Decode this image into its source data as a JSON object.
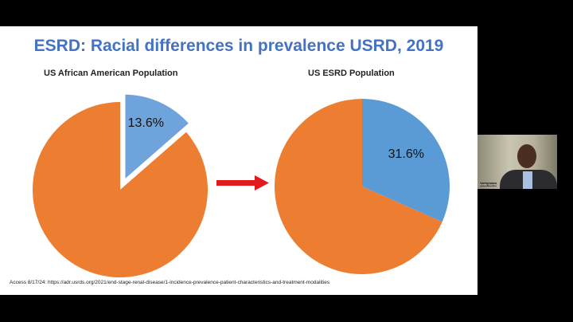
{
  "slide": {
    "title": "ESRD: Racial differences in prevalence USRD, 2019",
    "footnote": "Access 8/17/24: https://adr.usrds.org/2021/end-stage-renal-disease/1-incidence-prevalence-patient-characteristics-and-treatment-modalities",
    "arrow_color": "#e31a1c"
  },
  "chart_data": [
    {
      "type": "pie",
      "title": "US African American Population",
      "values": [
        13.6,
        86.4
      ],
      "labels": [
        "13.6%",
        ""
      ],
      "colors": [
        "#6fa3dc",
        "#ed7d31"
      ],
      "exploded": [
        true,
        false
      ]
    },
    {
      "type": "pie",
      "title": "US ESRD Population",
      "values": [
        31.6,
        68.4
      ],
      "labels": [
        "31.6%",
        ""
      ],
      "colors": [
        "#5b9bd5",
        "#ed7d31"
      ],
      "exploded": [
        false,
        false
      ]
    }
  ],
  "webcam": {
    "name_label": "Keith Norris"
  }
}
